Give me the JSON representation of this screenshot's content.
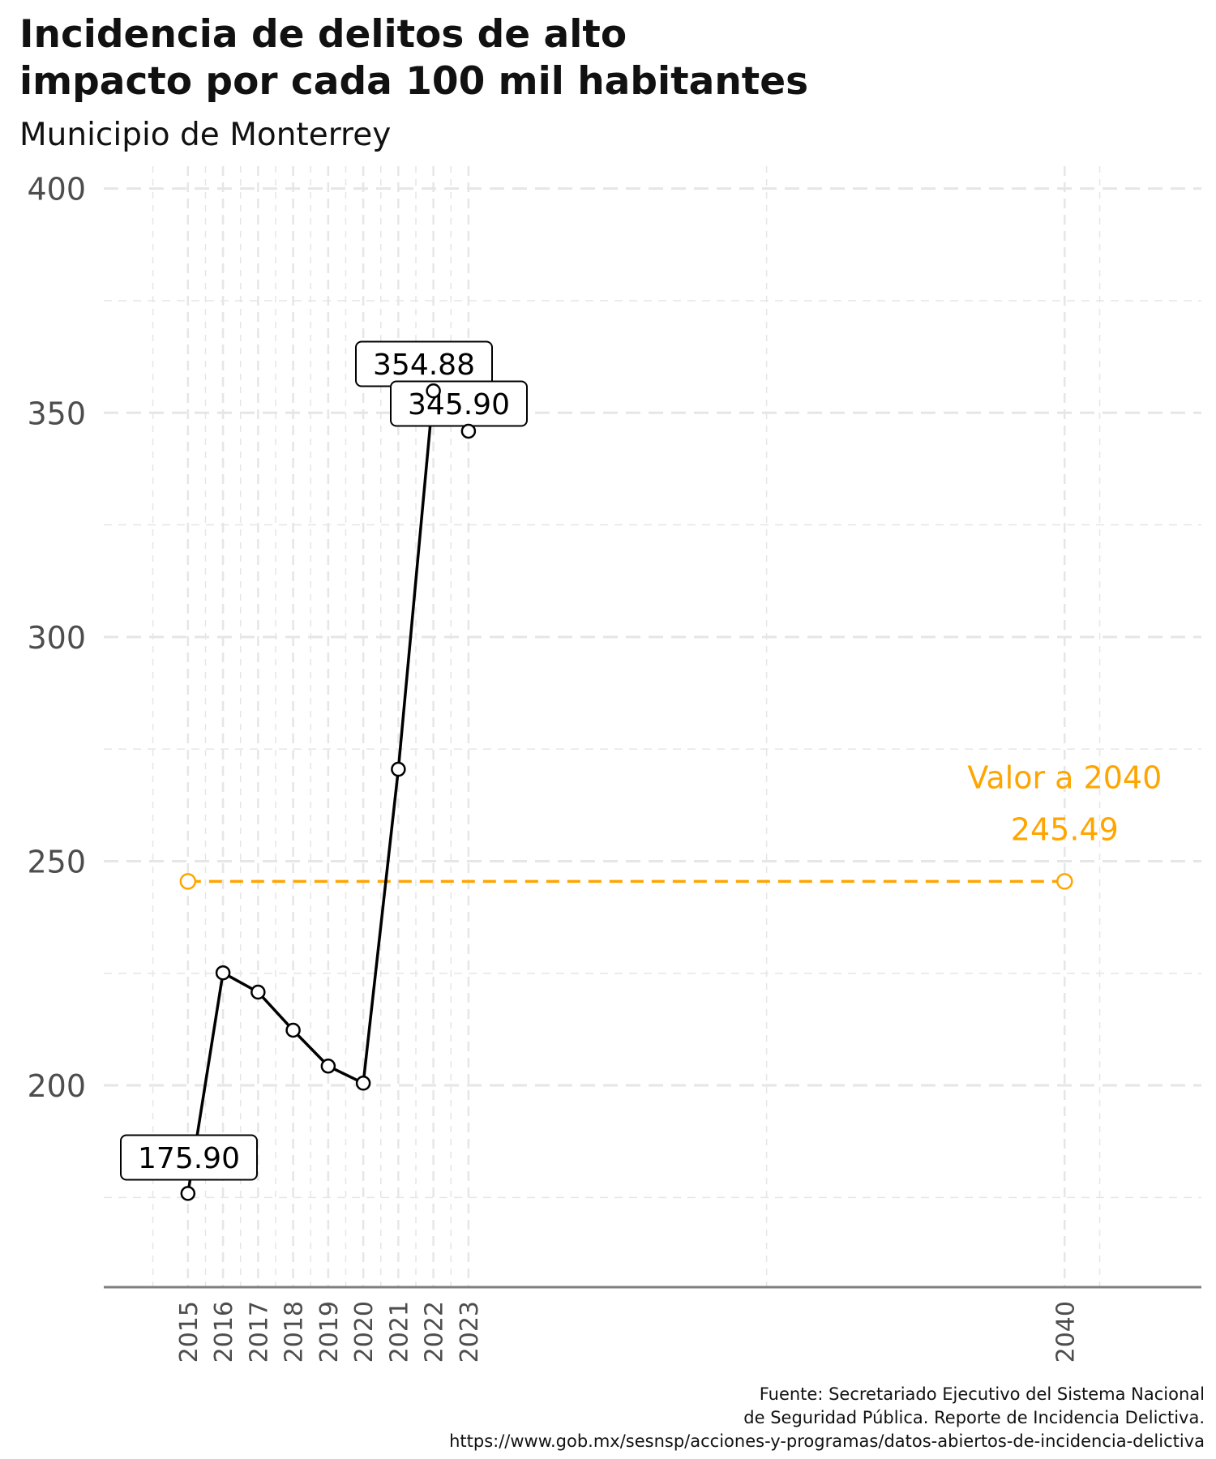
{
  "title_line1": "Incidencia de delitos de alto",
  "title_line2": "impacto por cada 100 mil habitantes",
  "subtitle": "Municipio de Monterrey",
  "caption": [
    "Fuente: Secretariado Ejecutivo del Sistema Nacional",
    "de Seguridad Pública. Reporte de Incidencia Delictiva.",
    "https://www.gob.mx/sesnsp/acciones-y-programas/datos-abiertos-de-incidencia-delictiva"
  ],
  "colors": {
    "series": "#000000",
    "target": "#FFA500",
    "grid": "#e6e6e6",
    "axis_text": "#4d4d4d"
  },
  "chart_data": {
    "type": "line",
    "title": "Incidencia de delitos de alto impacto por cada 100 mil habitantes",
    "subtitle": "Municipio de Monterrey",
    "xlabel": "",
    "ylabel": "",
    "ylim": [
      155,
      405
    ],
    "y_ticks": [
      200,
      250,
      300,
      350,
      400
    ],
    "x_ticks": [
      2015,
      2016,
      2017,
      2018,
      2019,
      2020,
      2021,
      2022,
      2023,
      2040
    ],
    "grid": true,
    "series": [
      {
        "x": [
          2015,
          2016,
          2017,
          2018,
          2019,
          2020,
          2021,
          2022,
          2023
        ],
        "values": [
          175.9,
          225.1,
          220.8,
          212.3,
          204.3,
          200.5,
          270.5,
          354.88,
          345.9
        ]
      }
    ],
    "labels": [
      {
        "x": 2015,
        "text": "175.90"
      },
      {
        "x": 2022,
        "text": "354.88"
      },
      {
        "x": 2023,
        "text": "345.90"
      }
    ],
    "target": {
      "x_start": 2015,
      "x_end": 2040,
      "value": 245.49,
      "label_line1": "Valor a 2040",
      "label_line2": "245.49"
    }
  }
}
